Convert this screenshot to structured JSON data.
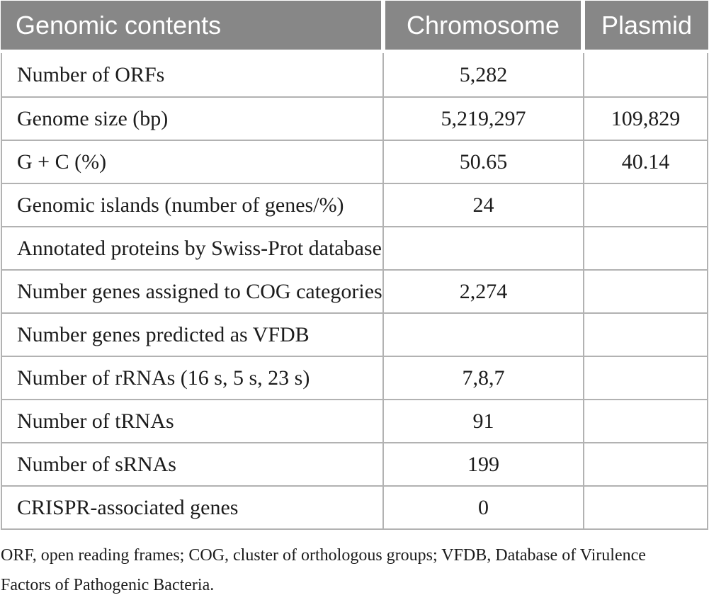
{
  "table": {
    "title_column_header": "Genomic contents",
    "headers": {
      "genomic_contents": "Genomic contents",
      "chromosome": "Chromosome",
      "plasmid": "Plasmid"
    },
    "rows": [
      {
        "label": "Number of ORFs",
        "chromosome": "5,282",
        "plasmid": ""
      },
      {
        "label": "Genome size (bp)",
        "chromosome": "5,219,297",
        "plasmid": "109,829"
      },
      {
        "label": "G + C (%)",
        "chromosome": "50.65",
        "plasmid": "40.14"
      },
      {
        "label": "Genomic islands (number of genes/%)",
        "chromosome": "24",
        "plasmid": ""
      },
      {
        "label": "Annotated proteins by Swiss-Prot database",
        "chromosome": "",
        "plasmid": ""
      },
      {
        "label": "Number genes assigned to COG categories",
        "chromosome": "2,274",
        "plasmid": ""
      },
      {
        "label": "Number genes predicted as VFDB",
        "chromosome": "",
        "plasmid": ""
      },
      {
        "label": "Number of rRNAs (16 s, 5 s, 23 s)",
        "chromosome": "7,8,7",
        "plasmid": ""
      },
      {
        "label": "Number of tRNAs",
        "chromosome": "91",
        "plasmid": ""
      },
      {
        "label": "Number of sRNAs",
        "chromosome": "199",
        "plasmid": ""
      },
      {
        "label": "CRISPR-associated genes",
        "chromosome": "0",
        "plasmid": ""
      }
    ],
    "footnote": "ORF, open reading frames; COG, cluster of orthologous groups; VFDB, Database of Virulence Factors of Pathogenic Bacteria."
  },
  "colors": {
    "header_bg": "#878787",
    "header_text": "#ffffff",
    "border": "#b2b2b2",
    "body_text": "#1c1c1c"
  },
  "chart_data": {
    "type": "table",
    "title": "Genomic contents",
    "columns": [
      "Genomic contents",
      "Chromosome",
      "Plasmid"
    ],
    "rows": [
      [
        "Number of ORFs",
        "5,282",
        ""
      ],
      [
        "Genome size (bp)",
        "5,219,297",
        "109,829"
      ],
      [
        "G + C (%)",
        "50.65",
        "40.14"
      ],
      [
        "Genomic islands (number of genes/%)",
        "24",
        ""
      ],
      [
        "Annotated proteins by Swiss-Prot database",
        "",
        ""
      ],
      [
        "Number genes assigned to COG categories",
        "2,274",
        ""
      ],
      [
        "Number genes predicted as VFDB",
        "",
        ""
      ],
      [
        "Number of rRNAs (16 s, 5 s, 23 s)",
        "7,8,7",
        ""
      ],
      [
        "Number of tRNAs",
        "91",
        ""
      ],
      [
        "Number of sRNAs",
        "199",
        ""
      ],
      [
        "CRISPR-associated genes",
        "0",
        ""
      ]
    ]
  }
}
